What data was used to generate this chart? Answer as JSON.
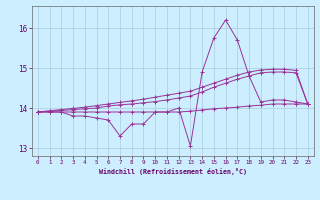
{
  "xlabel": "Windchill (Refroidissement éolien,°C)",
  "bg_color": "#cceeff",
  "grid_color": "#aaccdd",
  "line_color": "#993399",
  "xlim": [
    -0.5,
    23.5
  ],
  "ylim": [
    12.8,
    16.55
  ],
  "yticks": [
    13,
    14,
    15,
    16
  ],
  "xticks": [
    0,
    1,
    2,
    3,
    4,
    5,
    6,
    7,
    8,
    9,
    10,
    11,
    12,
    13,
    14,
    15,
    16,
    17,
    18,
    19,
    20,
    21,
    22,
    23
  ],
  "series": [
    {
      "x": [
        0,
        1,
        2,
        3,
        4,
        5,
        6,
        7,
        8,
        9,
        10,
        11,
        12,
        13,
        14,
        15,
        16,
        17,
        18,
        19,
        20,
        21,
        22,
        23
      ],
      "y": [
        13.9,
        13.9,
        13.9,
        13.8,
        13.8,
        13.75,
        13.7,
        13.3,
        13.6,
        13.6,
        13.9,
        13.9,
        14.0,
        13.05,
        14.9,
        15.75,
        16.2,
        15.7,
        14.8,
        14.15,
        14.2,
        14.2,
        14.15,
        14.1
      ]
    },
    {
      "x": [
        0,
        1,
        2,
        3,
        4,
        5,
        6,
        7,
        8,
        9,
        10,
        11,
        12,
        13,
        14,
        15,
        16,
        17,
        18,
        19,
        20,
        21,
        22,
        23
      ],
      "y": [
        13.9,
        13.9,
        13.9,
        13.9,
        13.9,
        13.9,
        13.9,
        13.9,
        13.9,
        13.9,
        13.9,
        13.9,
        13.9,
        13.92,
        13.95,
        13.98,
        14.0,
        14.02,
        14.05,
        14.07,
        14.1,
        14.1,
        14.1,
        14.1
      ]
    },
    {
      "x": [
        0,
        1,
        2,
        3,
        4,
        5,
        6,
        7,
        8,
        9,
        10,
        11,
        12,
        13,
        14,
        15,
        16,
        17,
        18,
        19,
        20,
        21,
        22,
        23
      ],
      "y": [
        13.9,
        13.92,
        13.94,
        13.96,
        13.98,
        14.0,
        14.05,
        14.08,
        14.1,
        14.13,
        14.16,
        14.2,
        14.25,
        14.3,
        14.4,
        14.52,
        14.62,
        14.72,
        14.8,
        14.88,
        14.9,
        14.9,
        14.88,
        14.1
      ]
    },
    {
      "x": [
        0,
        1,
        2,
        3,
        4,
        5,
        6,
        7,
        8,
        9,
        10,
        11,
        12,
        13,
        14,
        15,
        16,
        17,
        18,
        19,
        20,
        21,
        22,
        23
      ],
      "y": [
        13.9,
        13.93,
        13.96,
        13.99,
        14.02,
        14.06,
        14.1,
        14.14,
        14.18,
        14.22,
        14.27,
        14.32,
        14.37,
        14.42,
        14.52,
        14.62,
        14.72,
        14.82,
        14.9,
        14.95,
        14.97,
        14.97,
        14.94,
        14.1
      ]
    }
  ]
}
